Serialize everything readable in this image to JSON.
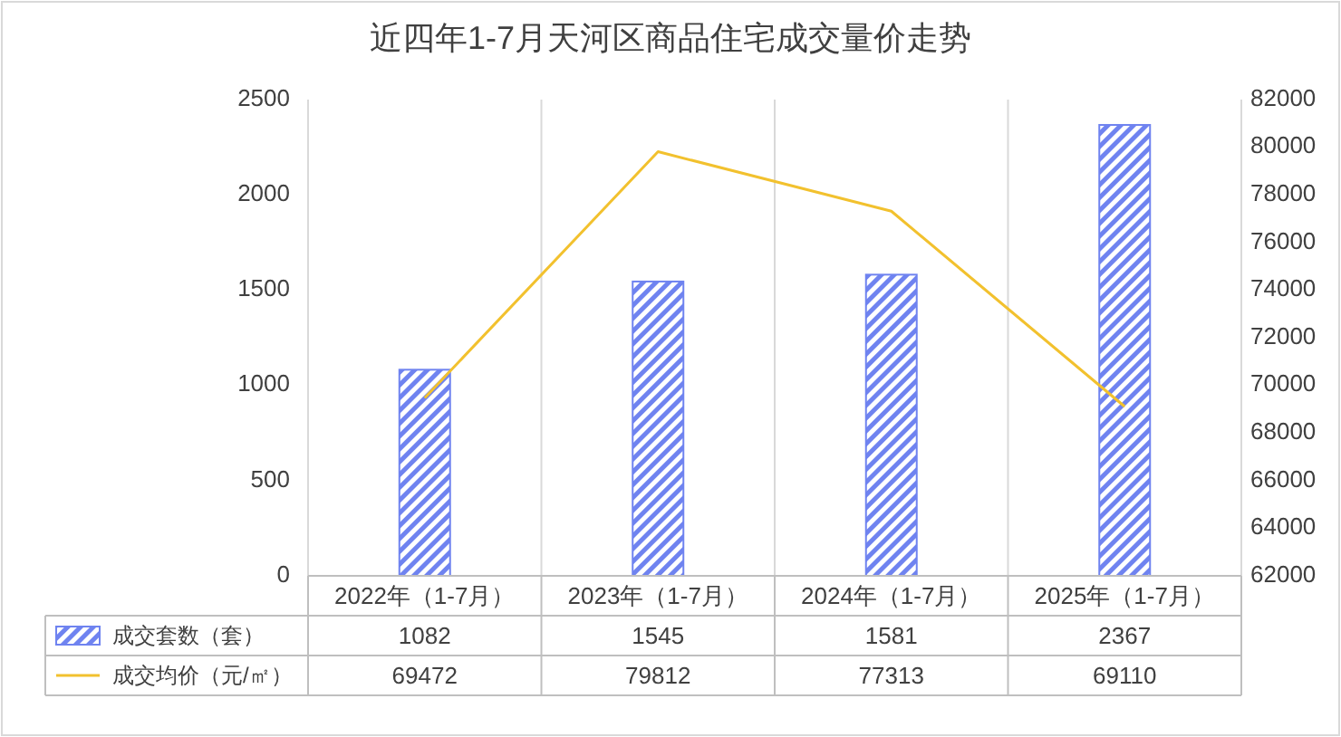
{
  "chart_data": {
    "type": "bar",
    "title": "近四年1-7月天河区商品住宅成交量价走势",
    "categories": [
      "2022年（1-7月）",
      "2023年（1-7月）",
      "2024年（1-7月）",
      "2025年（1-7月）"
    ],
    "series": [
      {
        "name": "成交套数（套）",
        "color": "#6f83f0",
        "values": [
          1082,
          1545,
          1581,
          2367
        ]
      },
      {
        "name": "成交均价（元/㎡）",
        "type": "line",
        "axis": "y2",
        "color": "#f2c12e",
        "values": [
          69472,
          79812,
          77313,
          69110
        ]
      }
    ],
    "ylim": [
      0,
      2500
    ],
    "yticks": [
      0,
      500,
      1000,
      1500,
      2000,
      2500
    ],
    "y2lim": [
      62000,
      82000
    ],
    "y2ticks": [
      62000,
      64000,
      66000,
      68000,
      70000,
      72000,
      74000,
      76000,
      78000,
      80000,
      82000
    ],
    "grid": "x",
    "legend": "bottom",
    "data_labels": true
  }
}
